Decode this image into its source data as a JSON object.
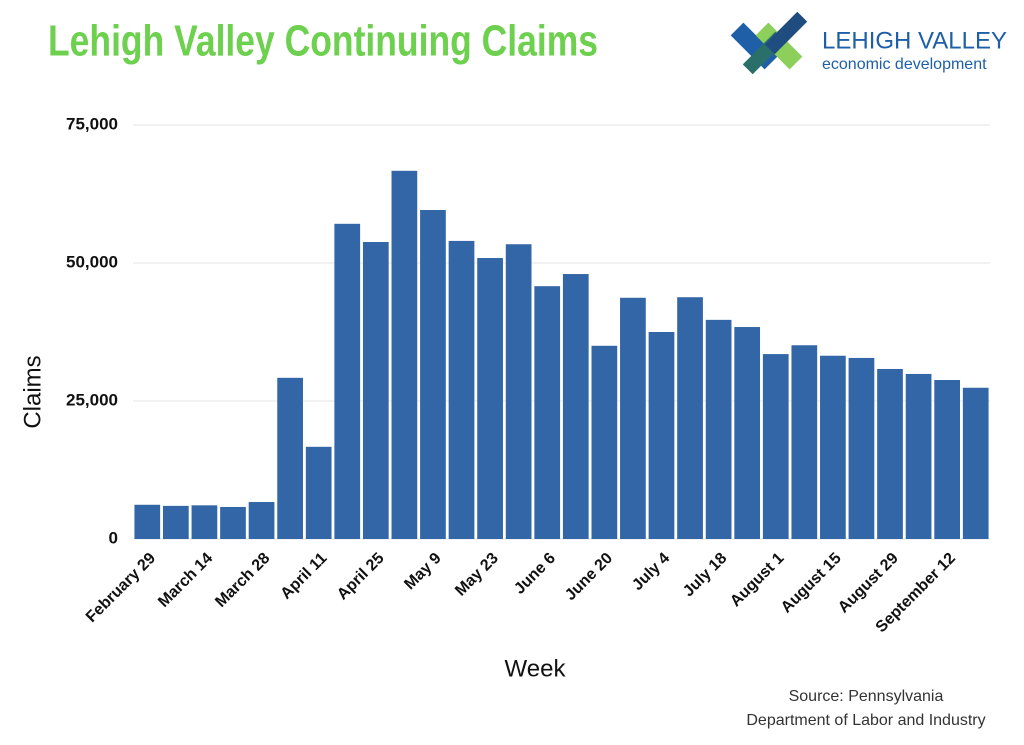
{
  "chart_data": {
    "type": "bar",
    "title": "Lehigh Valley Continuing Claims",
    "logo": {
      "name": "LEHIGH VALLEY",
      "tagline": "economic development"
    },
    "x_label": "Week",
    "y_label": "Claims",
    "categories": [
      "February 29",
      null,
      "March 14",
      null,
      "March 28",
      null,
      "April 11",
      null,
      "April 25",
      null,
      "May 9",
      null,
      "May 23",
      null,
      "June 6",
      null,
      "June 20",
      null,
      "July 4",
      null,
      "July 18",
      null,
      "August 1",
      null,
      "August 15",
      null,
      "August 29",
      null,
      "September 12",
      null
    ],
    "values": [
      6200,
      6000,
      6100,
      5800,
      6700,
      29200,
      16700,
      57100,
      53800,
      66700,
      59600,
      54000,
      50900,
      53400,
      45800,
      48000,
      35000,
      43700,
      37500,
      43800,
      39700,
      38400,
      33500,
      35100,
      33200,
      32800,
      30800,
      29900,
      28800,
      27400
    ],
    "color": "#3366a6",
    "ylim": [
      0,
      75000
    ],
    "yticks": [
      0,
      {
        "value": 25000,
        "label": "25,000"
      },
      {
        "value": 50000,
        "label": "50,000"
      },
      {
        "value": 75000,
        "label": "75,000"
      }
    ],
    "grid": true,
    "source": [
      "Source: Pennsylvania",
      "Department of Labor and Industry"
    ]
  }
}
